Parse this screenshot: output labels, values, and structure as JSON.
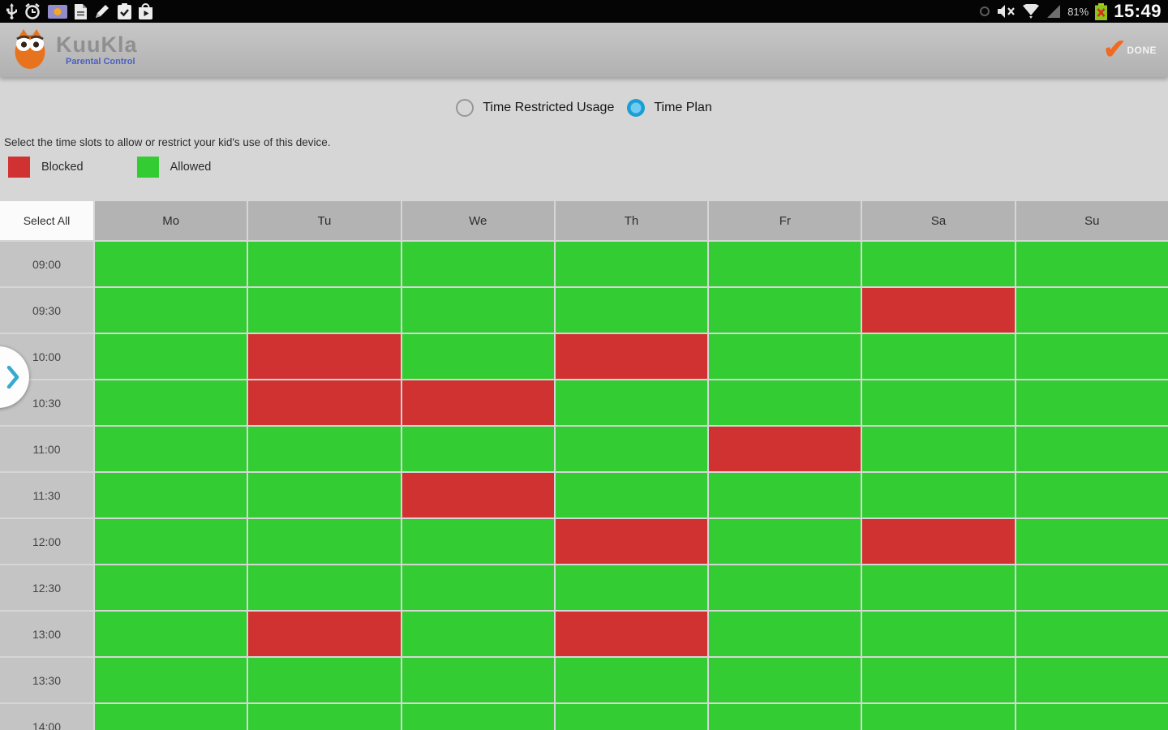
{
  "status_bar": {
    "time": "15:49",
    "battery_percent": "81%",
    "icons_left": [
      "usb-icon",
      "alarm-icon",
      "app-notification-icon",
      "document-icon",
      "edit-pencil-icon",
      "task-check-icon",
      "play-store-icon"
    ],
    "icons_right": [
      "dim-status-icon",
      "mute-icon",
      "wifi-icon",
      "signal-icon",
      "battery-icon"
    ]
  },
  "app_bar": {
    "app_name": "KuuKla",
    "app_subtitle": "Parental Control",
    "done_label": "DONE",
    "accent_orange": "#f26a21"
  },
  "mode_selector": {
    "options": [
      {
        "label": "Time Restricted Usage",
        "selected": false
      },
      {
        "label": "Time Plan",
        "selected": true
      }
    ],
    "radio_blue": "#1b9ed4"
  },
  "instruction": "Select the time slots to allow or restrict your kid's use of this device.",
  "legend": [
    {
      "label": "Blocked",
      "color": "#cf3231"
    },
    {
      "label": "Allowed",
      "color": "#33cc33"
    }
  ],
  "grid": {
    "select_all_label": "Select All",
    "days": [
      "Mo",
      "Tu",
      "We",
      "Th",
      "Fr",
      "Sa",
      "Su"
    ],
    "times": [
      "09:00",
      "09:30",
      "10:00",
      "10:30",
      "11:00",
      "11:30",
      "12:00",
      "12:30",
      "13:00",
      "13:30",
      "14:00"
    ],
    "blocked_cells": [
      {
        "time": "09:30",
        "day": "Sa"
      },
      {
        "time": "10:00",
        "day": "Tu"
      },
      {
        "time": "10:00",
        "day": "Th"
      },
      {
        "time": "10:30",
        "day": "Tu"
      },
      {
        "time": "10:30",
        "day": "We"
      },
      {
        "time": "11:00",
        "day": "Fr"
      },
      {
        "time": "11:30",
        "day": "We"
      },
      {
        "time": "12:00",
        "day": "Th"
      },
      {
        "time": "12:00",
        "day": "Sa"
      },
      {
        "time": "13:00",
        "day": "Tu"
      },
      {
        "time": "13:00",
        "day": "Th"
      }
    ],
    "colors": {
      "blocked": "#cf3231",
      "allowed": "#33cc33"
    }
  }
}
